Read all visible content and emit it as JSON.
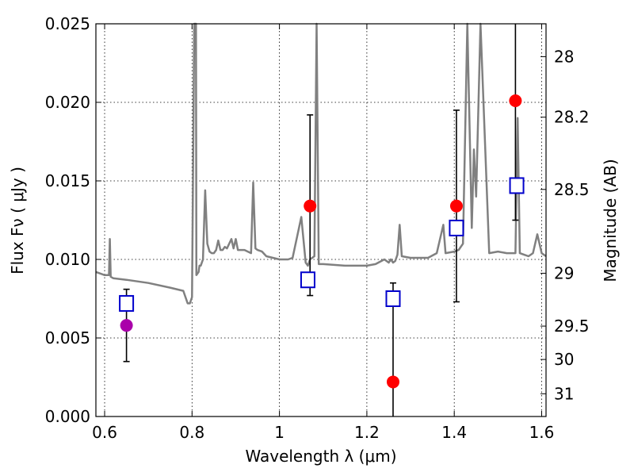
{
  "chart_data": {
    "type": "scatter",
    "xlabel": "Wavelength  λ (μm)",
    "ylabel": "Flux  Fν  ( μJy )",
    "y2label": "Magnitude (AB)",
    "xlim": [
      0.58,
      1.61
    ],
    "ylim": [
      0.0,
      0.025
    ],
    "grid": true,
    "x_ticks": [
      0.6,
      0.8,
      1.0,
      1.2,
      1.4,
      1.6
    ],
    "x_tick_labels": [
      "0.6",
      "0.8",
      "1",
      "1.2",
      "1.4",
      "1.6"
    ],
    "y_ticks": [
      0.0,
      0.005,
      0.01,
      0.015,
      0.02,
      0.025
    ],
    "y_tick_labels": [
      "0.000",
      "0.005",
      "0.010",
      "0.015",
      "0.020",
      "0.025"
    ],
    "right_axis_magnitude_ticks": [
      28,
      28.2,
      28.5,
      29,
      29.5,
      30,
      31
    ],
    "right_axis_tick_labels": [
      "28",
      "28.2",
      "28.5",
      "29",
      "29.5",
      "30",
      "31"
    ],
    "colors": {
      "spectrum": "#808080",
      "observed": "#ff0000",
      "observed_first": "#aa00aa",
      "model": "#0000cc",
      "errorbar": "#000000"
    },
    "series": [
      {
        "kind": "line",
        "x": [
          0.58,
          0.6,
          0.61,
          0.612,
          0.614,
          0.62,
          0.65,
          0.7,
          0.75,
          0.78,
          0.79,
          0.795,
          0.8,
          0.805,
          0.807,
          0.809,
          0.81,
          0.815,
          0.817,
          0.82,
          0.825,
          0.83,
          0.835,
          0.84,
          0.845,
          0.85,
          0.855,
          0.86,
          0.865,
          0.87,
          0.875,
          0.88,
          0.89,
          0.895,
          0.9,
          0.905,
          0.91,
          0.92,
          0.935,
          0.94,
          0.945,
          0.95,
          0.96,
          0.97,
          1.0,
          1.02,
          1.03,
          1.05,
          1.06,
          1.065,
          1.07,
          1.08,
          1.085,
          1.09,
          1.1,
          1.15,
          1.2,
          1.22,
          1.24,
          1.25,
          1.255,
          1.26,
          1.265,
          1.27,
          1.275,
          1.28,
          1.3,
          1.34,
          1.36,
          1.375,
          1.38,
          1.4,
          1.41,
          1.42,
          1.43,
          1.44,
          1.445,
          1.45,
          1.46,
          1.48,
          1.5,
          1.52,
          1.54,
          1.545,
          1.55,
          1.56,
          1.57,
          1.58,
          1.59,
          1.6,
          1.61
        ],
        "y": [
          0.0092,
          0.009,
          0.009,
          0.0113,
          0.0089,
          0.0088,
          0.0087,
          0.0085,
          0.0082,
          0.008,
          0.0072,
          0.0072,
          0.0076,
          0.025,
          0.025,
          0.025,
          0.009,
          0.0092,
          0.0096,
          0.0096,
          0.01,
          0.0144,
          0.011,
          0.0105,
          0.0104,
          0.0104,
          0.0106,
          0.0112,
          0.0106,
          0.0106,
          0.0108,
          0.0107,
          0.0113,
          0.0107,
          0.0113,
          0.0106,
          0.0106,
          0.0106,
          0.0104,
          0.0149,
          0.0107,
          0.0106,
          0.0105,
          0.0102,
          0.01,
          0.01,
          0.0101,
          0.0127,
          0.0098,
          0.0096,
          0.01,
          0.0102,
          0.025,
          0.0097,
          0.0097,
          0.0096,
          0.0096,
          0.0097,
          0.01,
          0.0098,
          0.01,
          0.0098,
          0.0099,
          0.0103,
          0.0122,
          0.0102,
          0.0101,
          0.0101,
          0.0104,
          0.0122,
          0.0104,
          0.0105,
          0.0106,
          0.011,
          0.025,
          0.012,
          0.017,
          0.014,
          0.025,
          0.0104,
          0.0105,
          0.0104,
          0.0104,
          0.019,
          0.0104,
          0.0103,
          0.0102,
          0.0104,
          0.0116,
          0.0104,
          0.0102
        ]
      },
      {
        "kind": "observed",
        "x": [
          0.65,
          1.07,
          1.26,
          1.405,
          1.54
        ],
        "y": [
          0.0058,
          0.0134,
          0.0022,
          0.0134,
          0.0201
        ],
        "yerr_low": [
          0.0035,
          0.0077,
          0.0,
          0.0073,
          0.0125
        ],
        "yerr_high": [
          0.0081,
          0.0192,
          0.0085,
          0.0195,
          0.025
        ]
      },
      {
        "kind": "model",
        "x": [
          0.65,
          1.065,
          1.26,
          1.405,
          1.543
        ],
        "y": [
          0.0072,
          0.0087,
          0.0075,
          0.012,
          0.0147
        ]
      }
    ]
  }
}
